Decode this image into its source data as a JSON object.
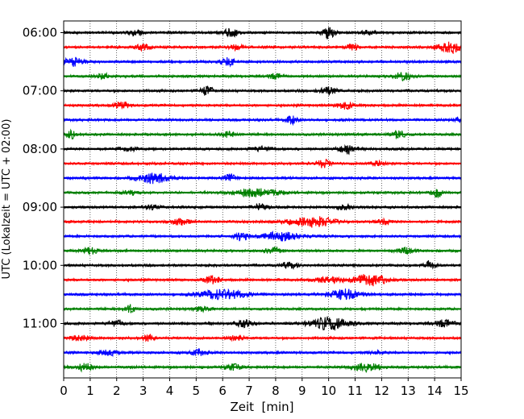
{
  "chart_data": {
    "type": "line",
    "xlabel": "Zeit  [min]",
    "ylabel": "UTC (Lokalzeit = UTC + 02:00)",
    "xlim": [
      0,
      15
    ],
    "x_ticks": [
      "0",
      "1",
      "2",
      "3",
      "4",
      "5",
      "6",
      "7",
      "8",
      "9",
      "10",
      "11",
      "12",
      "13",
      "14",
      "15"
    ],
    "y_ticks": [
      "06:00",
      "07:00",
      "08:00",
      "09:00",
      "10:00",
      "11:00"
    ],
    "grid": "vertical dotted lines at each minute",
    "colors": [
      "#000000",
      "#ff0000",
      "#0000ff",
      "#008000"
    ],
    "trace_interval_min": 15,
    "series": [
      {
        "start": "06:00",
        "color": "#000000",
        "events": [
          [
            2.7,
            0.35,
            0.3
          ],
          [
            6.3,
            0.55,
            0.3
          ],
          [
            10.0,
            0.7,
            0.25
          ],
          [
            11.5,
            0.25,
            0.3
          ]
        ]
      },
      {
        "start": "06:15",
        "color": "#ff0000",
        "events": [
          [
            3.0,
            0.35,
            0.3
          ],
          [
            6.5,
            0.3,
            0.3
          ],
          [
            10.9,
            0.45,
            0.2
          ],
          [
            14.6,
            0.7,
            0.5
          ]
        ]
      },
      {
        "start": "06:30",
        "color": "#0000ff",
        "events": [
          [
            0.3,
            0.6,
            0.4
          ],
          [
            6.2,
            0.5,
            0.3
          ]
        ]
      },
      {
        "start": "06:45",
        "color": "#008000",
        "events": [
          [
            1.5,
            0.3,
            0.3
          ],
          [
            8.0,
            0.3,
            0.3
          ],
          [
            12.8,
            0.5,
            0.35
          ]
        ]
      },
      {
        "start": "07:00",
        "color": "#000000",
        "events": [
          [
            5.4,
            0.55,
            0.25
          ],
          [
            10.0,
            0.45,
            0.35
          ]
        ]
      },
      {
        "start": "07:15",
        "color": "#ff0000",
        "events": [
          [
            2.2,
            0.55,
            0.25
          ],
          [
            10.6,
            0.65,
            0.25
          ]
        ]
      },
      {
        "start": "07:30",
        "color": "#0000ff",
        "events": [
          [
            8.6,
            0.55,
            0.2
          ],
          [
            14.9,
            0.35,
            0.15
          ]
        ]
      },
      {
        "start": "07:45",
        "color": "#008000",
        "events": [
          [
            0.3,
            0.5,
            0.2
          ],
          [
            6.2,
            0.35,
            0.25
          ],
          [
            12.6,
            0.5,
            0.3
          ]
        ]
      },
      {
        "start": "08:00",
        "color": "#000000",
        "events": [
          [
            2.4,
            0.25,
            0.4
          ],
          [
            7.5,
            0.25,
            0.4
          ],
          [
            10.7,
            0.6,
            0.3
          ]
        ]
      },
      {
        "start": "08:15",
        "color": "#ff0000",
        "events": [
          [
            9.8,
            0.55,
            0.25
          ],
          [
            11.8,
            0.3,
            0.3
          ]
        ]
      },
      {
        "start": "08:30",
        "color": "#0000ff",
        "events": [
          [
            3.4,
            0.7,
            0.6
          ],
          [
            6.3,
            0.55,
            0.2
          ]
        ]
      },
      {
        "start": "08:45",
        "color": "#008000",
        "events": [
          [
            2.5,
            0.35,
            0.3
          ],
          [
            7.3,
            0.55,
            0.8
          ],
          [
            14.1,
            0.65,
            0.2
          ]
        ]
      },
      {
        "start": "09:00",
        "color": "#000000",
        "events": [
          [
            3.3,
            0.25,
            0.3
          ],
          [
            7.4,
            0.4,
            0.3
          ],
          [
            10.6,
            0.3,
            0.35
          ]
        ]
      },
      {
        "start": "09:15",
        "color": "#ff0000",
        "events": [
          [
            4.4,
            0.4,
            0.4
          ],
          [
            9.4,
            0.7,
            0.8
          ],
          [
            12.1,
            0.3,
            0.3
          ]
        ]
      },
      {
        "start": "09:30",
        "color": "#0000ff",
        "events": [
          [
            6.7,
            0.6,
            0.25
          ],
          [
            8.2,
            0.6,
            0.7
          ]
        ]
      },
      {
        "start": "09:45",
        "color": "#008000",
        "events": [
          [
            1.0,
            0.45,
            0.25
          ],
          [
            7.9,
            0.4,
            0.3
          ],
          [
            12.9,
            0.4,
            0.3
          ]
        ]
      },
      {
        "start": "10:00",
        "color": "#000000",
        "events": [
          [
            8.5,
            0.4,
            0.3
          ],
          [
            13.8,
            0.55,
            0.2
          ]
        ]
      },
      {
        "start": "10:15",
        "color": "#ff0000",
        "events": [
          [
            5.6,
            0.45,
            0.3
          ],
          [
            11.6,
            0.85,
            0.6
          ],
          [
            10.0,
            0.35,
            0.5
          ]
        ]
      },
      {
        "start": "10:30",
        "color": "#0000ff",
        "events": [
          [
            6.0,
            0.6,
            0.9
          ],
          [
            10.6,
            0.65,
            0.6
          ]
        ]
      },
      {
        "start": "10:45",
        "color": "#008000",
        "events": [
          [
            2.5,
            0.55,
            0.2
          ],
          [
            5.2,
            0.25,
            0.3
          ]
        ]
      },
      {
        "start": "11:00",
        "color": "#000000",
        "events": [
          [
            2.0,
            0.4,
            0.3
          ],
          [
            6.8,
            0.45,
            0.3
          ],
          [
            10.0,
            0.9,
            0.7
          ],
          [
            14.4,
            0.45,
            0.4
          ]
        ]
      },
      {
        "start": "11:15",
        "color": "#ff0000",
        "events": [
          [
            0.6,
            0.35,
            0.4
          ],
          [
            3.2,
            0.45,
            0.2
          ],
          [
            6.5,
            0.3,
            0.3
          ]
        ]
      },
      {
        "start": "11:30",
        "color": "#0000ff",
        "events": [
          [
            1.7,
            0.35,
            0.4
          ],
          [
            5.1,
            0.4,
            0.3
          ],
          [
            11.8,
            0.2,
            0.3
          ]
        ]
      },
      {
        "start": "11:45",
        "color": "#008000",
        "events": [
          [
            0.8,
            0.55,
            0.25
          ],
          [
            6.4,
            0.4,
            0.3
          ],
          [
            11.4,
            0.55,
            0.5
          ]
        ]
      }
    ]
  }
}
